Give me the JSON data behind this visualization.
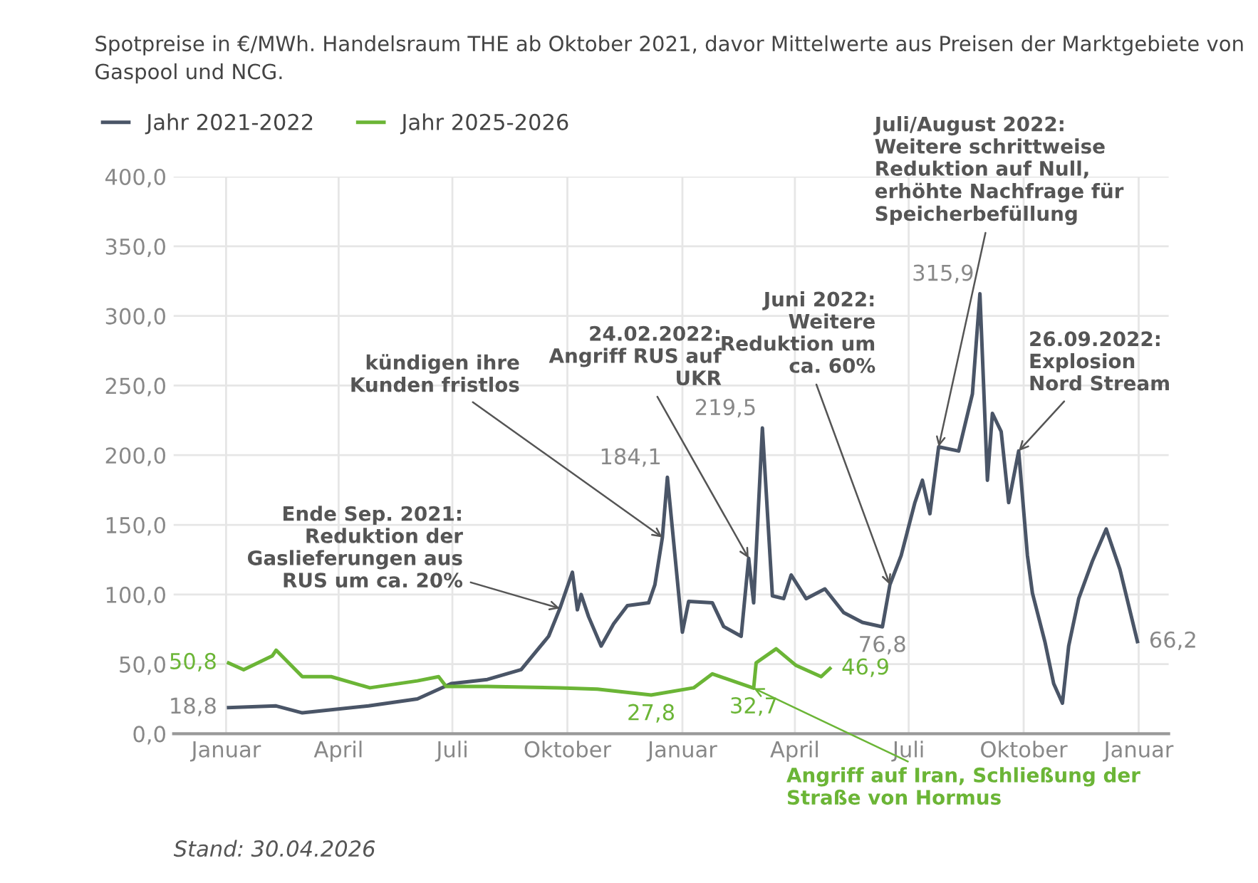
{
  "chart_data": {
    "type": "line",
    "title": "Spotpreise in €/MWh. Handelsraum THE ab Oktober 2021, davor Mittelwerte aus Preisen der Marktgebiete von Gaspool und NCG.",
    "series": [
      {
        "name": "Jahr 2021-2022",
        "color": "#4a5567",
        "x": [
          "2021-01-03",
          "2021-02-10",
          "2021-03-03",
          "2021-04-25",
          "2021-06-03",
          "2021-06-30",
          "2021-07-29",
          "2021-08-25",
          "2021-09-16",
          "2021-09-25",
          "2021-10-05",
          "2021-10-09",
          "2021-10-12",
          "2021-10-18",
          "2021-10-28",
          "2021-11-07",
          "2021-11-18",
          "2021-12-05",
          "2021-12-10",
          "2021-12-16",
          "2021-12-20",
          "2022-01-01",
          "2022-01-06",
          "2022-01-25",
          "2022-02-03",
          "2022-02-17",
          "2022-02-23",
          "2022-02-27",
          "2022-03-06",
          "2022-03-14",
          "2022-03-23",
          "2022-03-29",
          "2022-04-10",
          "2022-04-25",
          "2022-05-10",
          "2022-05-25",
          "2022-06-10",
          "2022-06-16",
          "2022-06-25",
          "2022-07-06",
          "2022-07-12",
          "2022-07-18",
          "2022-07-25",
          "2022-08-10",
          "2022-08-21",
          "2022-08-27",
          "2022-09-02",
          "2022-09-06",
          "2022-09-13",
          "2022-09-19",
          "2022-09-27",
          "2022-10-04",
          "2022-10-08",
          "2022-10-18",
          "2022-10-25",
          "2022-11-01",
          "2022-11-06",
          "2022-11-14",
          "2022-11-25",
          "2022-12-06",
          "2022-12-17",
          "2022-12-31"
        ],
        "values": [
          18.8,
          20,
          15,
          20,
          25,
          36,
          39,
          46,
          70,
          90,
          116,
          89,
          100,
          84,
          63,
          79,
          92,
          94,
          107,
          141,
          184.1,
          73,
          95,
          94,
          77,
          70,
          126,
          94,
          219.5,
          99,
          97,
          114,
          97,
          104,
          87,
          80,
          76.8,
          107,
          128,
          166,
          182,
          158,
          206,
          203,
          244,
          315.9,
          182,
          230,
          217,
          166,
          203,
          128,
          101,
          66,
          36,
          22,
          63,
          97,
          124,
          147,
          118,
          66.2
        ],
        "value_labels": [
          "18,8",
          null,
          null,
          null,
          null,
          null,
          null,
          null,
          null,
          null,
          null,
          null,
          null,
          null,
          null,
          null,
          null,
          null,
          null,
          null,
          "184,1",
          null,
          null,
          null,
          null,
          null,
          null,
          null,
          "219,5",
          null,
          null,
          null,
          null,
          null,
          null,
          null,
          "76,8",
          null,
          null,
          null,
          null,
          null,
          null,
          null,
          null,
          "315,9",
          null,
          null,
          null,
          null,
          null,
          null,
          null,
          null,
          null,
          null,
          null,
          null,
          null,
          null,
          null,
          "66,2"
        ]
      },
      {
        "name": "Jahr 2025-2026",
        "color": "#6bb536",
        "x": [
          "2021-01-03",
          "2021-01-15",
          "2021-02-07",
          "2021-02-10",
          "2021-03-03",
          "2021-03-26",
          "2021-04-26",
          "2021-06-03",
          "2021-06-20",
          "2021-06-26",
          "2021-07-29",
          "2021-09-25",
          "2021-10-25",
          "2021-12-07",
          "2022-01-10",
          "2022-01-25",
          "2022-02-27",
          "2022-03-01",
          "2022-03-17",
          "2022-04-02",
          "2022-04-22",
          "2022-04-29"
        ],
        "values": [
          50.8,
          46,
          56,
          60,
          41,
          41,
          33,
          38,
          41,
          34,
          34,
          33,
          32,
          27.8,
          33,
          43,
          32.7,
          51,
          61,
          49,
          41,
          46.9
        ],
        "value_labels": [
          "50,8",
          null,
          null,
          null,
          null,
          null,
          null,
          null,
          null,
          null,
          null,
          null,
          null,
          "27,8",
          null,
          null,
          "32,7",
          null,
          null,
          null,
          null,
          "46,9"
        ]
      }
    ],
    "xlim": [
      "2020-11-20",
      "2023-01-25"
    ],
    "xticks": [
      {
        "value": "2021-01-01",
        "label": "Januar"
      },
      {
        "value": "2021-04-01",
        "label": "April"
      },
      {
        "value": "2021-07-01",
        "label": "Juli"
      },
      {
        "value": "2021-10-01",
        "label": "Oktober"
      },
      {
        "value": "2022-01-01",
        "label": "Januar"
      },
      {
        "value": "2022-04-01",
        "label": "April"
      },
      {
        "value": "2022-07-01",
        "label": "Juli"
      },
      {
        "value": "2022-10-01",
        "label": "Oktober"
      },
      {
        "value": "2023-01-01",
        "label": "Januar"
      }
    ],
    "ylim": [
      0,
      400
    ],
    "yticks": [
      {
        "value": 0,
        "label": "0,0"
      },
      {
        "value": 50,
        "label": "50,0"
      },
      {
        "value": 100,
        "label": "100,0"
      },
      {
        "value": 150,
        "label": "150,0"
      },
      {
        "value": 200,
        "label": "200,0"
      },
      {
        "value": 250,
        "label": "250,0"
      },
      {
        "value": 300,
        "label": "300,0"
      },
      {
        "value": 350,
        "label": "350,0"
      },
      {
        "value": 400,
        "label": "400,0"
      }
    ],
    "grid": true,
    "legend": "top left",
    "annotations": [
      {
        "text": "Ende Sep. 2021:\nReduktion der\nGaslieferungen aus\nRUS um ca. 20%",
        "x": "2021-09-25",
        "y": 90
      },
      {
        "text": "kündigen ihre\nKunden fristlos",
        "x": "2021-12-16",
        "y": 141
      },
      {
        "text": "24.02.2022:\nAngriff RUS auf\nUKR",
        "x": "2022-02-23",
        "y": 126
      },
      {
        "text": "Juni 2022:\nWeitere\nReduktion um\nca. 60%",
        "x": "2022-06-16",
        "y": 107
      },
      {
        "text": "Juli/August 2022:\nWeitere schrittweise\nReduktion auf Null,\nerhöhte Nachfrage für\nSpeicherbefüllung",
        "x": "2022-07-25",
        "y": 206
      },
      {
        "text": "26.09.2022:\nExplosion\nNord Stream",
        "x": "2022-09-27",
        "y": 203
      },
      {
        "text": "Angriff auf Iran, Schließung der\nStraße von Hormus",
        "x": "2022-02-27",
        "y": 32.7
      },
      "Stand: 30.04.2026"
    ]
  }
}
